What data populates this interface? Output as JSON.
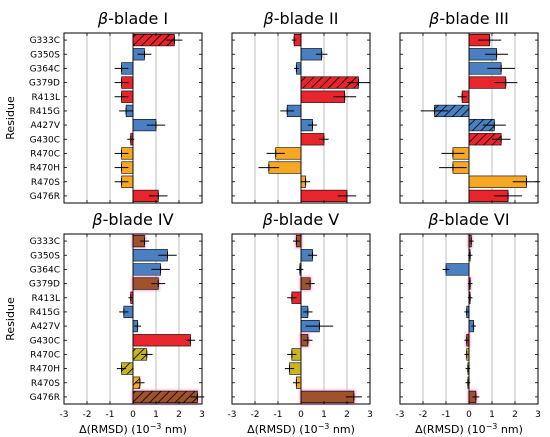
{
  "chart_data": {
    "type": "bar",
    "orientation": "horizontal",
    "categories": [
      "G333C",
      "G350S",
      "G364C",
      "G379D",
      "R413L",
      "R415G",
      "A427V",
      "G430C",
      "R470C",
      "R470H",
      "R470S",
      "G476R"
    ],
    "ylabel": "Residue",
    "xlabel_main": "Δ(RMSD) (10",
    "xlabel_exp": "−3",
    "xlabel_unit": " nm)",
    "xlim": [
      -3,
      3
    ],
    "xticks": [
      "-3",
      "-2",
      "-1",
      "0",
      "1",
      "2",
      "3"
    ],
    "grid": "vertical",
    "panels": [
      {
        "title_greek": "β",
        "title": "-blade I",
        "values": [
          1.8,
          0.5,
          -0.5,
          -0.5,
          -0.5,
          -0.3,
          1.0,
          -0.1,
          -0.5,
          -0.5,
          -0.5,
          1.1
        ],
        "errors": [
          0.35,
          0.3,
          0.3,
          0.3,
          0.3,
          0.3,
          0.4,
          0.15,
          0.3,
          0.3,
          0.3,
          0.4
        ],
        "colors": [
          "#e8242c",
          "#4a7fc1",
          "#4a7fc1",
          "#e8242c",
          "#e8242c",
          "#4a7fc1",
          "#4a7fc1",
          "#e8242c",
          "#f6a723",
          "#f6a723",
          "#f6a723",
          "#e8242c"
        ],
        "hatched": [
          true,
          false,
          false,
          false,
          false,
          false,
          false,
          false,
          false,
          false,
          false,
          false
        ]
      },
      {
        "title_greek": "β",
        "title": "-blade II",
        "values": [
          -0.3,
          0.9,
          -0.2,
          2.5,
          1.9,
          -0.6,
          0.5,
          1.0,
          -1.1,
          -1.4,
          0.2,
          2.0
        ],
        "errors": [
          0.1,
          0.25,
          0.1,
          0.5,
          0.5,
          0.3,
          0.2,
          0.2,
          0.4,
          0.45,
          0.2,
          0.4
        ],
        "colors": [
          "#e8242c",
          "#4a7fc1",
          "#4a7fc1",
          "#e8242c",
          "#e8242c",
          "#4a7fc1",
          "#4a7fc1",
          "#e8242c",
          "#f6a723",
          "#f6a723",
          "#f6a723",
          "#e8242c"
        ],
        "hatched": [
          false,
          false,
          false,
          true,
          false,
          false,
          false,
          false,
          false,
          false,
          false,
          false
        ]
      },
      {
        "title_greek": "β",
        "title": "-blade III",
        "values": [
          0.9,
          1.2,
          1.4,
          1.6,
          -0.3,
          -1.5,
          1.1,
          1.4,
          -0.7,
          -0.7,
          2.5,
          1.7
        ],
        "errors": [
          0.5,
          0.5,
          0.6,
          0.5,
          0.2,
          0.6,
          0.5,
          0.4,
          0.5,
          0.6,
          0.6,
          0.6
        ],
        "colors": [
          "#e8242c",
          "#4a7fc1",
          "#4a7fc1",
          "#e8242c",
          "#e8242c",
          "#4a7fc1",
          "#4a7fc1",
          "#e8242c",
          "#f6a723",
          "#f6a723",
          "#f6a723",
          "#e8242c"
        ],
        "hatched": [
          false,
          false,
          false,
          false,
          false,
          true,
          true,
          true,
          false,
          false,
          false,
          false
        ]
      },
      {
        "title_greek": "β",
        "title": "-blade IV",
        "values": [
          0.5,
          1.5,
          1.2,
          1.1,
          -0.1,
          -0.4,
          0.2,
          2.5,
          0.6,
          -0.5,
          0.3,
          2.8
        ],
        "errors": [
          0.2,
          0.4,
          0.4,
          0.3,
          0.1,
          0.2,
          0.15,
          0.2,
          0.25,
          0.2,
          0.2,
          0.3
        ],
        "colors": [
          "#a0522d",
          "#4a7fc1",
          "#4a7fc1",
          "#a0522d",
          "#e8242c",
          "#4a7fc1",
          "#4a7fc1",
          "#e8242c",
          "#c9b521",
          "#c9b521",
          "#f6a723",
          "#a0522d"
        ],
        "hatched": [
          false,
          false,
          false,
          false,
          false,
          false,
          false,
          false,
          true,
          true,
          true,
          true
        ]
      },
      {
        "title_greek": "β",
        "title": "-blade V",
        "values": [
          -0.2,
          0.5,
          -0.05,
          0.4,
          -0.4,
          0.3,
          0.8,
          0.3,
          -0.4,
          -0.5,
          -0.2,
          2.3
        ],
        "errors": [
          0.15,
          0.2,
          0.15,
          0.2,
          0.2,
          0.2,
          0.6,
          0.2,
          0.2,
          0.2,
          0.15,
          0.35
        ],
        "colors": [
          "#a0522d",
          "#4a7fc1",
          "#4a7fc1",
          "#a0522d",
          "#e8242c",
          "#4a7fc1",
          "#4a7fc1",
          "#a0522d",
          "#c9b521",
          "#c9b521",
          "#f6a723",
          "#a0522d"
        ],
        "hatched": [
          false,
          false,
          false,
          false,
          false,
          false,
          false,
          false,
          false,
          false,
          false,
          false
        ]
      },
      {
        "title_greek": "β",
        "title": "-blade VI",
        "values": [
          0.1,
          0.05,
          -1.0,
          0.05,
          0.05,
          -0.1,
          0.2,
          -0.1,
          -0.1,
          -0.05,
          -0.05,
          0.3
        ],
        "errors": [
          0.1,
          0.1,
          0.15,
          0.1,
          0.1,
          0.1,
          0.1,
          0.1,
          0.1,
          0.1,
          0.1,
          0.15
        ],
        "colors": [
          "#a0522d",
          "#4a7fc1",
          "#4a7fc1",
          "#a0522d",
          "#e8242c",
          "#4a7fc1",
          "#4a7fc1",
          "#a0522d",
          "#c9b521",
          "#c9b521",
          "#f6a723",
          "#a0522d"
        ],
        "hatched": [
          false,
          false,
          false,
          false,
          false,
          false,
          false,
          false,
          false,
          false,
          false,
          false
        ]
      }
    ]
  }
}
